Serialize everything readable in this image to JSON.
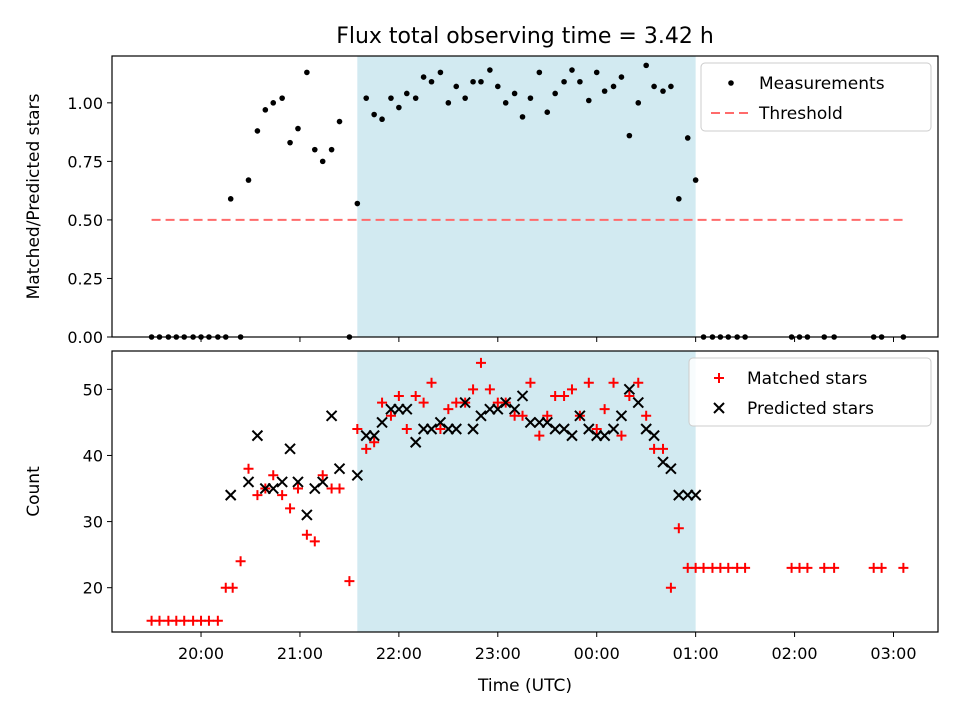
{
  "chart_data": {
    "title": "Flux total observing time = 3.42 h",
    "xlabel": "Time (UTC)",
    "x_tick_labels": [
      "20:00",
      "21:00",
      "22:00",
      "23:00",
      "00:00",
      "01:00",
      "02:00",
      "03:00"
    ],
    "x_ticks_hours": [
      20,
      21,
      22,
      23,
      24,
      25,
      26,
      27
    ],
    "xlim_hours": [
      19.1,
      27.45
    ],
    "observing_window_hours": [
      21.58,
      25.0
    ],
    "colors": {
      "span": "#add8e6",
      "threshold": "#ff6b6b",
      "matched": "#ff0000",
      "predicted": "#000000",
      "measurements": "#000000"
    },
    "panels": [
      {
        "type": "scatter",
        "ylabel": "Matched/Predicted stars",
        "ylim": [
          0,
          1.2
        ],
        "y_tick_values": [
          0,
          0.25,
          0.5,
          0.75,
          1.0
        ],
        "y_tick_labels": [
          "0.00",
          "0.25",
          "0.50",
          "0.75",
          "1.00"
        ],
        "legend": {
          "placement": "top-right",
          "entries": [
            "Measurements",
            "Threshold"
          ]
        },
        "threshold": {
          "name": "Threshold",
          "value": 0.5,
          "x_range_hours": [
            19.5,
            27.1
          ]
        },
        "series": [
          {
            "name": "Measurements",
            "marker": "dot",
            "x": [
              19.5,
              19.58,
              19.67,
              19.75,
              19.83,
              19.92,
              20.0,
              20.08,
              20.17,
              20.25,
              20.3,
              20.4,
              20.48,
              20.57,
              20.65,
              20.73,
              20.82,
              20.9,
              20.98,
              21.07,
              21.15,
              21.23,
              21.32,
              21.4,
              21.5,
              21.58,
              21.67,
              21.75,
              21.83,
              21.92,
              22.0,
              22.08,
              22.17,
              22.25,
              22.33,
              22.42,
              22.5,
              22.58,
              22.67,
              22.75,
              22.83,
              22.92,
              23.0,
              23.08,
              23.17,
              23.25,
              23.33,
              23.42,
              23.5,
              23.58,
              23.67,
              23.75,
              23.83,
              23.92,
              24.0,
              24.08,
              24.17,
              24.25,
              24.33,
              24.42,
              24.5,
              24.58,
              24.67,
              24.75,
              24.83,
              24.92,
              25.0,
              25.08,
              25.17,
              25.25,
              25.33,
              25.42,
              25.5,
              25.97,
              26.05,
              26.13,
              26.3,
              26.4,
              26.8,
              26.88,
              27.1
            ],
            "y": [
              0,
              0,
              0,
              0,
              0,
              0,
              0,
              0,
              0,
              0,
              0.59,
              0,
              0.67,
              0.88,
              0.97,
              1.0,
              1.02,
              0.83,
              0.89,
              1.13,
              0.8,
              0.75,
              0.8,
              0.92,
              0,
              0.57,
              1.02,
              0.95,
              0.93,
              1.02,
              0.98,
              1.04,
              1.02,
              1.11,
              1.09,
              1.13,
              1.0,
              1.07,
              1.02,
              1.09,
              1.09,
              1.14,
              1.07,
              1.0,
              1.04,
              0.94,
              1.02,
              1.13,
              0.96,
              1.04,
              1.09,
              1.14,
              1.09,
              1.01,
              1.13,
              1.05,
              1.07,
              1.11,
              0.86,
              1.0,
              1.16,
              1.07,
              1.05,
              1.07,
              0.59,
              0.85,
              0.67,
              0,
              0,
              0,
              0,
              0,
              0,
              0,
              0,
              0,
              0,
              0,
              0,
              0,
              0
            ]
          }
        ]
      },
      {
        "type": "scatter",
        "ylabel": "Count",
        "ylim": [
          13.3,
          55.8
        ],
        "y_tick_values": [
          20,
          30,
          40,
          50
        ],
        "y_tick_labels": [
          "20",
          "30",
          "40",
          "50"
        ],
        "legend": {
          "placement": "top-right",
          "entries": [
            "Matched stars",
            "Predicted stars"
          ]
        },
        "series": [
          {
            "name": "Matched stars",
            "marker": "plus",
            "x": [
              19.5,
              19.58,
              19.67,
              19.75,
              19.83,
              19.92,
              20.0,
              20.08,
              20.17,
              20.25,
              20.32,
              20.4,
              20.48,
              20.57,
              20.65,
              20.73,
              20.82,
              20.9,
              20.98,
              21.07,
              21.15,
              21.23,
              21.32,
              21.4,
              21.5,
              21.58,
              21.67,
              21.75,
              21.83,
              21.92,
              22.0,
              22.08,
              22.17,
              22.25,
              22.33,
              22.42,
              22.5,
              22.58,
              22.67,
              22.75,
              22.83,
              22.92,
              23.0,
              23.08,
              23.17,
              23.25,
              23.33,
              23.42,
              23.5,
              23.58,
              23.67,
              23.75,
              23.83,
              23.92,
              24.0,
              24.08,
              24.17,
              24.25,
              24.33,
              24.42,
              24.5,
              24.58,
              24.67,
              24.75,
              24.83,
              24.92,
              25.0,
              25.08,
              25.17,
              25.25,
              25.33,
              25.42,
              25.5,
              25.97,
              26.05,
              26.13,
              26.3,
              26.4,
              26.8,
              26.88,
              27.1
            ],
            "y": [
              15,
              15,
              15,
              15,
              15,
              15,
              15,
              15,
              15,
              20,
              20,
              24,
              38,
              34,
              35,
              37,
              34,
              32,
              35,
              28,
              27,
              37,
              35,
              35,
              21,
              44,
              41,
              42,
              48,
              46,
              49,
              44,
              49,
              48,
              51,
              44,
              47,
              48,
              48,
              50,
              54,
              50,
              48,
              48,
              46,
              46,
              51,
              43,
              46,
              49,
              49,
              50,
              46,
              51,
              44,
              47,
              51,
              43,
              49,
              51,
              46,
              41,
              41,
              20,
              29,
              23,
              23,
              23,
              23,
              23,
              23,
              23,
              23,
              23,
              23,
              23,
              23,
              23,
              23,
              23,
              23
            ]
          },
          {
            "name": "Predicted stars",
            "marker": "x",
            "x": [
              20.3,
              20.48,
              20.57,
              20.65,
              20.73,
              20.82,
              20.9,
              20.98,
              21.07,
              21.15,
              21.23,
              21.32,
              21.4,
              21.58,
              21.67,
              21.75,
              21.83,
              21.92,
              22.0,
              22.08,
              22.17,
              22.25,
              22.33,
              22.42,
              22.5,
              22.58,
              22.67,
              22.75,
              22.83,
              22.92,
              23.0,
              23.08,
              23.17,
              23.25,
              23.33,
              23.42,
              23.5,
              23.58,
              23.67,
              23.75,
              23.83,
              23.92,
              24.0,
              24.08,
              24.17,
              24.25,
              24.33,
              24.42,
              24.5,
              24.58,
              24.67,
              24.75,
              24.83,
              24.92,
              25.0
            ],
            "y": [
              34,
              36,
              43,
              35,
              35,
              36,
              41,
              36,
              31,
              35,
              36,
              46,
              38,
              37,
              43,
              43,
              45,
              47,
              47,
              47,
              42,
              44,
              44,
              45,
              44,
              44,
              48,
              44,
              46,
              47,
              47,
              48,
              47,
              49,
              45,
              45,
              45,
              44,
              44,
              43,
              46,
              44,
              43,
              43,
              44,
              46,
              50,
              48,
              44,
              43,
              39,
              38,
              34,
              34,
              34
            ]
          }
        ]
      }
    ]
  }
}
